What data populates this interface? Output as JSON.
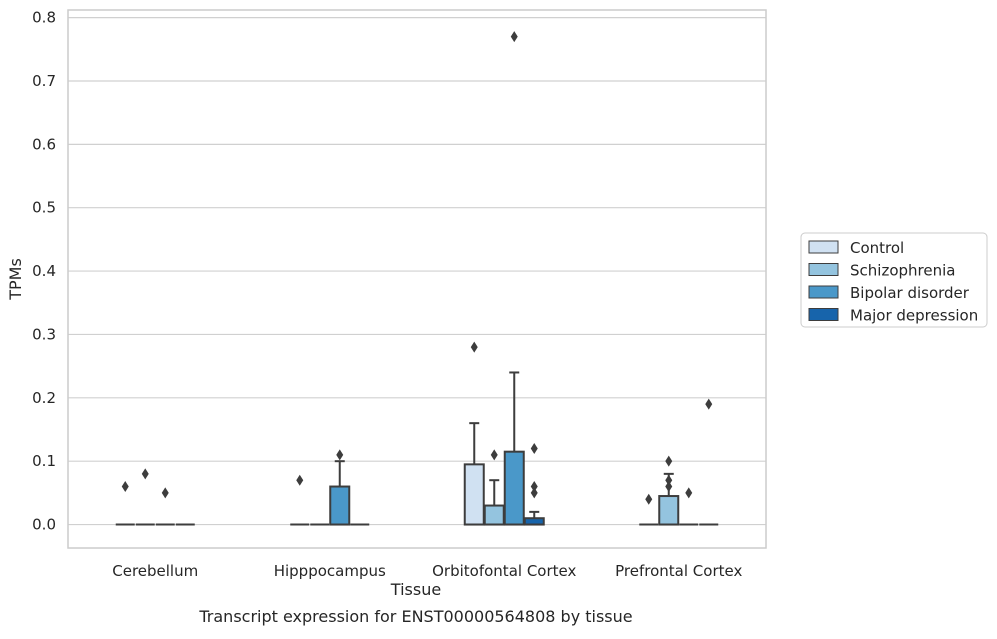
{
  "caption": "Transcript expression for ENST00000564808 by tissue",
  "colors": {
    "Control": "#d0e1f2",
    "Schizophrenia": "#94c4df",
    "Bipolar disorder": "#4a98c9",
    "Major depression": "#1764ab",
    "box_edge": "#3d3d3d",
    "grid": "#d0d0d0",
    "axes_frame": "#cccccc"
  },
  "chart_data": {
    "type": "boxplot",
    "xlabel": "Tissue",
    "ylabel": "TPMs",
    "ylim": [
      -0.037,
      0.812
    ],
    "yticks": [
      0.0,
      0.1,
      0.2,
      0.3,
      0.4,
      0.5,
      0.6,
      0.7,
      0.8
    ],
    "grid": true,
    "legend_position": "right",
    "categories": [
      "Cerebellum",
      "Hipppocampus",
      "Orbitofontal Cortex",
      "Prefrontal Cortex"
    ],
    "series": [
      {
        "name": "Control",
        "boxes": [
          {
            "q1": 0,
            "median": 0,
            "q3": 0,
            "whisker_low": 0,
            "whisker_high": 0,
            "outliers": [
              0.06
            ]
          },
          {
            "q1": 0,
            "median": 0,
            "q3": 0,
            "whisker_low": 0,
            "whisker_high": 0,
            "outliers": [
              0.07
            ]
          },
          {
            "q1": 0,
            "median": 0,
            "q3": 0.095,
            "whisker_low": 0,
            "whisker_high": 0.16,
            "outliers": [
              0.28
            ]
          },
          {
            "q1": 0,
            "median": 0,
            "q3": 0,
            "whisker_low": 0,
            "whisker_high": 0,
            "outliers": [
              0.04
            ]
          }
        ]
      },
      {
        "name": "Schizophrenia",
        "boxes": [
          {
            "q1": 0,
            "median": 0,
            "q3": 0,
            "whisker_low": 0,
            "whisker_high": 0,
            "outliers": [
              0.08
            ]
          },
          {
            "q1": 0,
            "median": 0,
            "q3": 0,
            "whisker_low": 0,
            "whisker_high": 0,
            "outliers": []
          },
          {
            "q1": 0,
            "median": 0,
            "q3": 0.03,
            "whisker_low": 0,
            "whisker_high": 0.07,
            "outliers": [
              0.11
            ]
          },
          {
            "q1": 0,
            "median": 0,
            "q3": 0.045,
            "whisker_low": 0,
            "whisker_high": 0.08,
            "outliers": [
              0.06,
              0.07,
              0.1
            ]
          }
        ]
      },
      {
        "name": "Bipolar disorder",
        "boxes": [
          {
            "q1": 0,
            "median": 0,
            "q3": 0,
            "whisker_low": 0,
            "whisker_high": 0,
            "outliers": [
              0.05
            ]
          },
          {
            "q1": 0,
            "median": 0,
            "q3": 0.06,
            "whisker_low": 0,
            "whisker_high": 0.1,
            "outliers": [
              0.11
            ]
          },
          {
            "q1": 0,
            "median": 0,
            "q3": 0.115,
            "whisker_low": 0,
            "whisker_high": 0.24,
            "outliers": [
              0.77
            ]
          },
          {
            "q1": 0,
            "median": 0,
            "q3": 0,
            "whisker_low": 0,
            "whisker_high": 0,
            "outliers": [
              0.05
            ]
          }
        ]
      },
      {
        "name": "Major depression",
        "boxes": [
          {
            "q1": 0,
            "median": 0,
            "q3": 0,
            "whisker_low": 0,
            "whisker_high": 0,
            "outliers": []
          },
          {
            "q1": 0,
            "median": 0,
            "q3": 0,
            "whisker_low": 0,
            "whisker_high": 0,
            "outliers": []
          },
          {
            "q1": 0,
            "median": 0,
            "q3": 0.01,
            "whisker_low": 0,
            "whisker_high": 0.02,
            "outliers": [
              0.05,
              0.06,
              0.12
            ]
          },
          {
            "q1": 0,
            "median": 0,
            "q3": 0,
            "whisker_low": 0,
            "whisker_high": 0,
            "outliers": [
              0.19
            ]
          }
        ]
      }
    ]
  }
}
